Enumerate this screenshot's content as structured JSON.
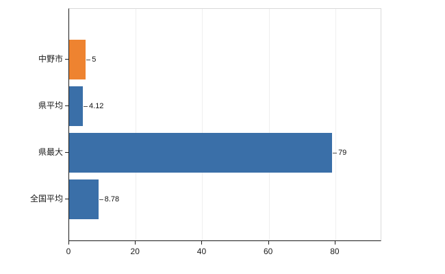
{
  "chart_data": {
    "type": "bar",
    "orientation": "horizontal",
    "title": "",
    "xlabel": "",
    "ylabel": "",
    "categories": [
      "中野市",
      "県平均",
      "県最大",
      "全国平均"
    ],
    "values": [
      5,
      4.12,
      79,
      8.78
    ],
    "value_labels": [
      "5",
      "4.12",
      "79",
      "8.78"
    ],
    "bar_colors": [
      "#ee8330",
      "#3a6fa8",
      "#3a6fa8",
      "#3a6fa8"
    ],
    "xlim": [
      0,
      94
    ],
    "x_ticks": [
      0,
      20,
      40,
      60,
      80
    ],
    "grid": true,
    "legend": false,
    "background_color": "#ffffff"
  },
  "colors": {
    "bar_blue": "#3a6fa8",
    "bar_orange": "#ee8330",
    "axis": "#1a1a1a",
    "plot_border": "#d9d9d9",
    "gridline": "#efefef",
    "text": "#111111"
  }
}
